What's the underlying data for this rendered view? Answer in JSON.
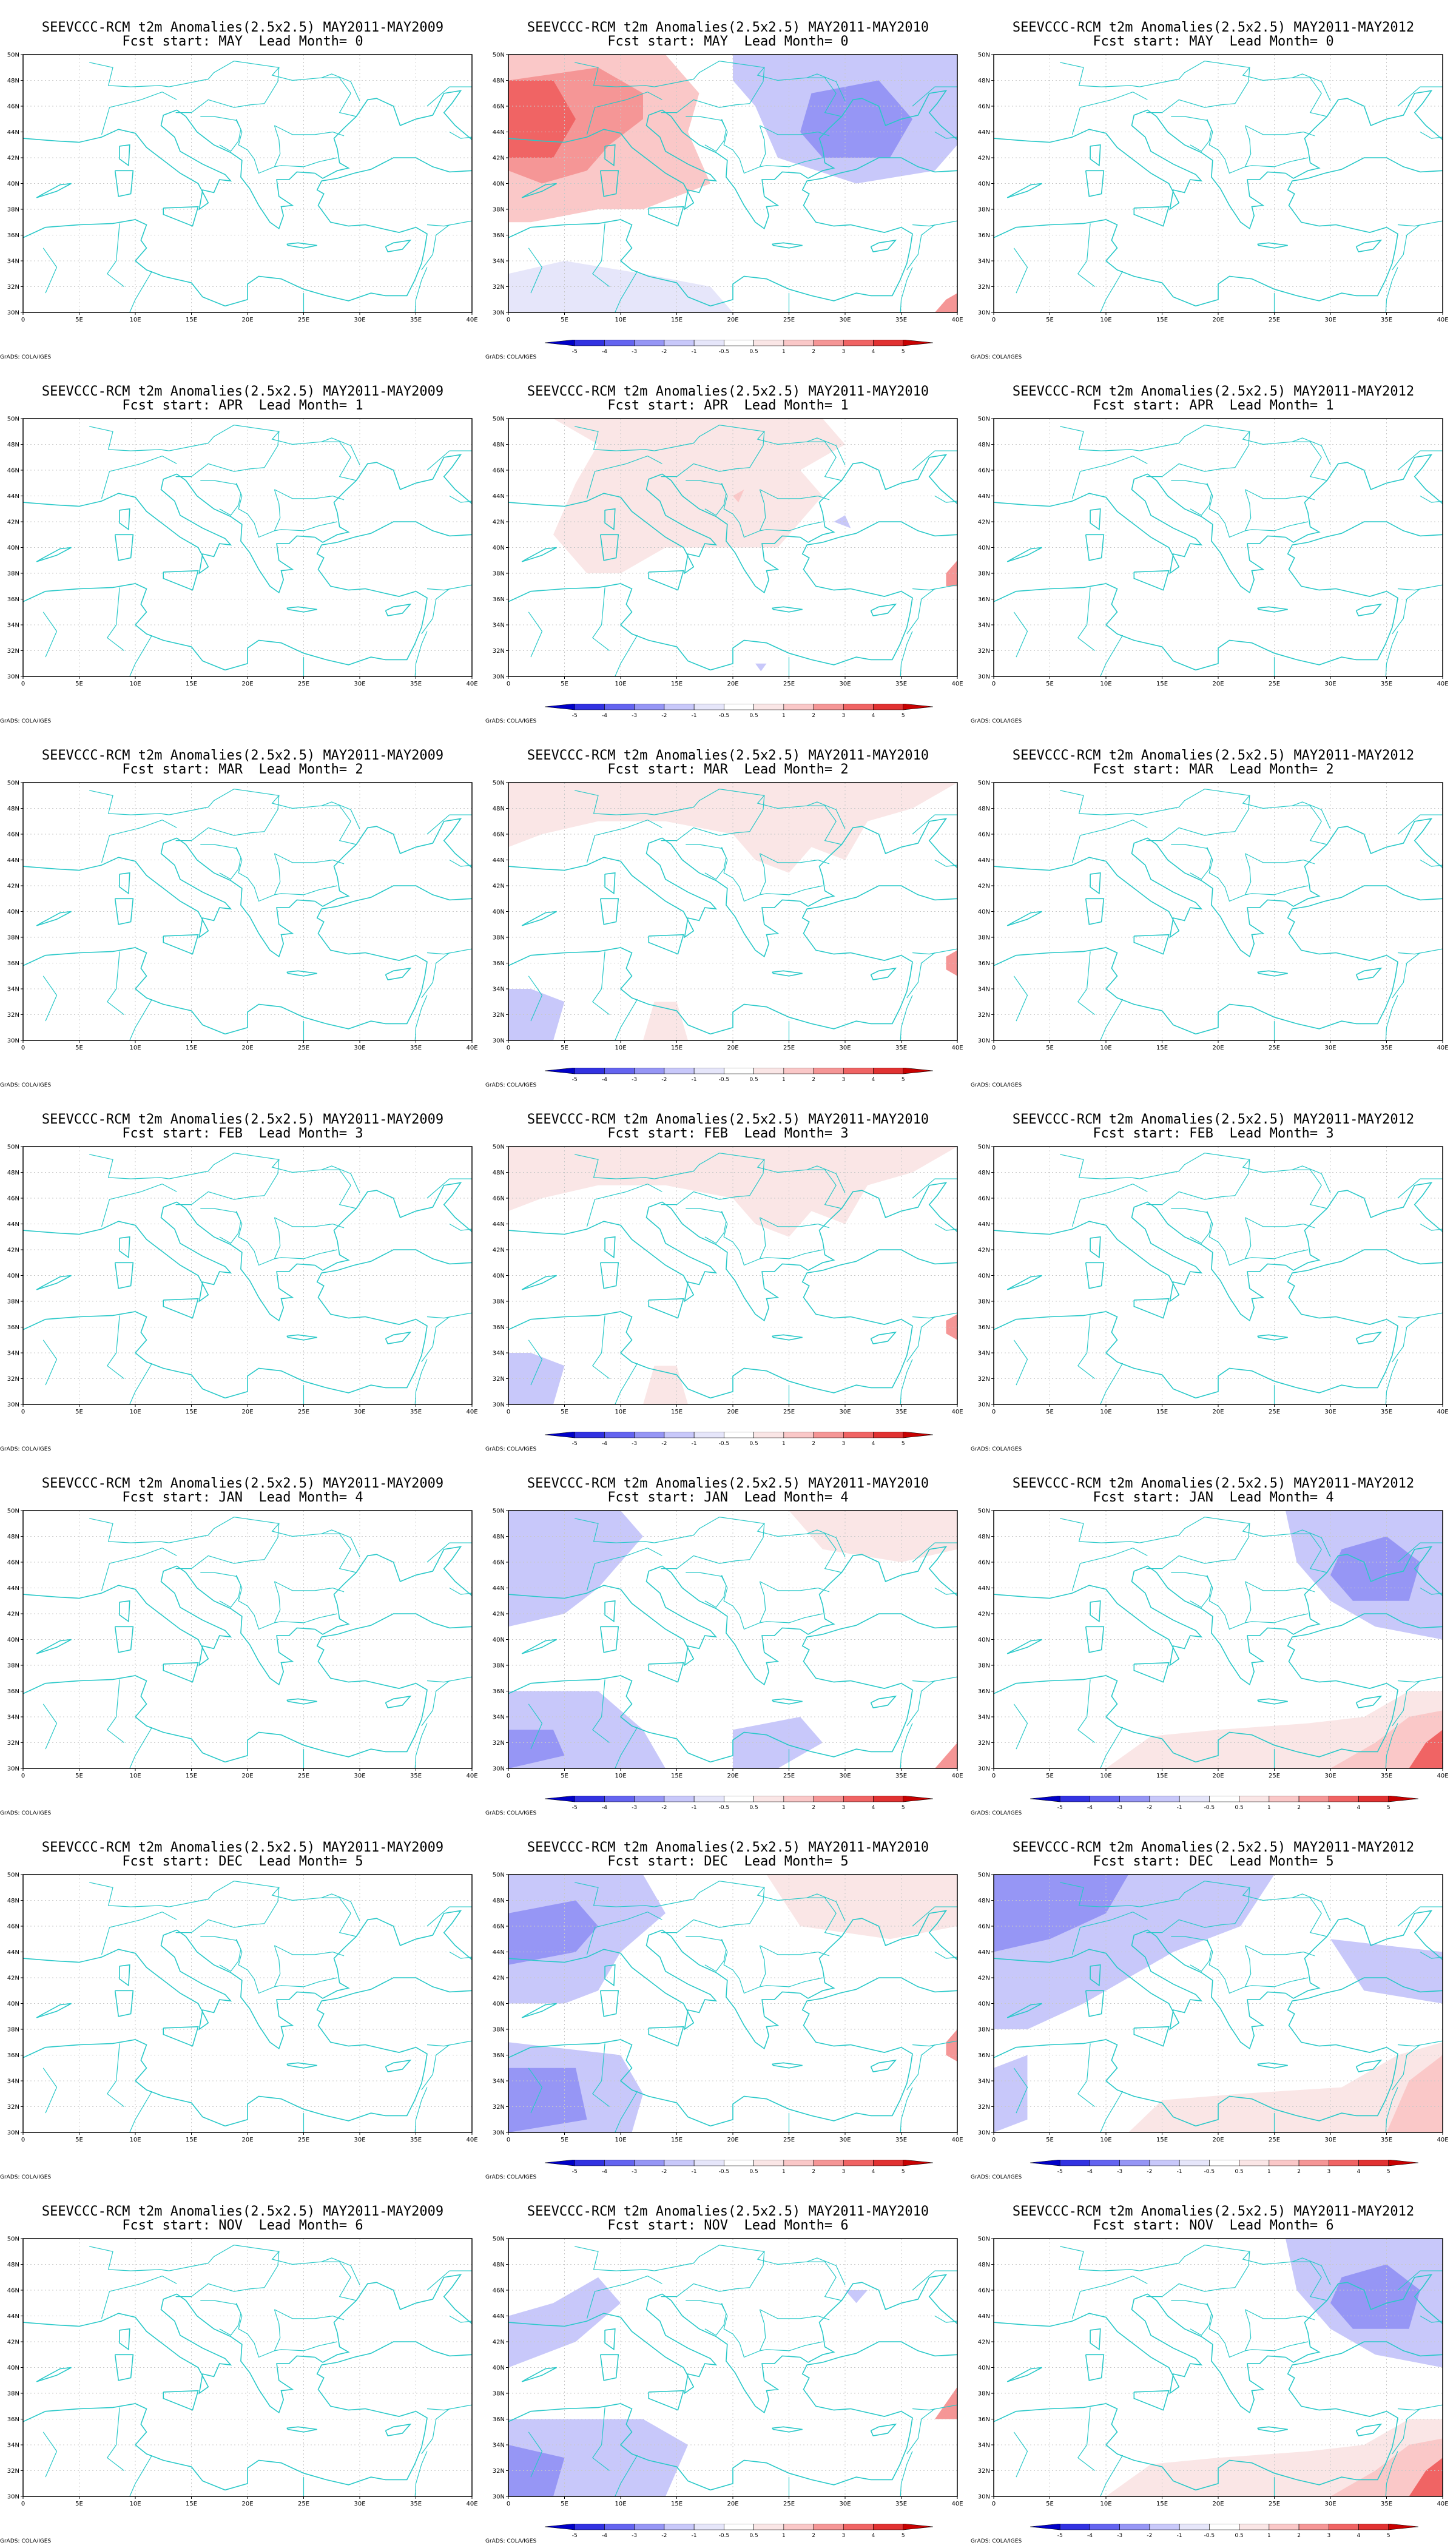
{
  "map": {
    "lat_labels": [
      "50N",
      "48N",
      "46N",
      "44N",
      "42N",
      "40N",
      "38N",
      "36N",
      "34N",
      "32N",
      "30N"
    ],
    "lon_labels": [
      "0",
      "5E",
      "10E",
      "15E",
      "20E",
      "25E",
      "30E",
      "35E",
      "40E"
    ],
    "lat_range": [
      30,
      50
    ],
    "lon_range": [
      0,
      40
    ],
    "coast_color": "#28c8c8",
    "grid_color": "#c8c8c8"
  },
  "credit": "GrADS: COLA/IGES",
  "colorbar": {
    "ticks": [
      "-5",
      "-4",
      "-3",
      "-2",
      "-1",
      "-0.5",
      "0.5",
      "1",
      "2",
      "3",
      "4",
      "5"
    ],
    "colors": [
      "#0000c8",
      "#3232e1",
      "#6464f0",
      "#9696f5",
      "#c8c8fa",
      "#e6e6fa",
      "#ffffff",
      "#fae6e6",
      "#fac8c8",
      "#f59696",
      "#f06464",
      "#e13232",
      "#c80000"
    ]
  },
  "title_prefix": "SEEVCCC-RCM t2m Anomalies(2.5x2.5)",
  "columns": [
    {
      "period": "MAY2011-MAY2009"
    },
    {
      "period": "MAY2011-MAY2010"
    },
    {
      "period": "MAY2011-MAY2012"
    }
  ],
  "panels": [
    {
      "title1": "SEEVCCC-RCM t2m Anomalies(2.5x2.5) MAY2011-MAY2009",
      "title2": "Fcst start: MAY  Lead Month= 0",
      "colorbar": false,
      "anomaly": "none"
    },
    {
      "title1": "SEEVCCC-RCM t2m Anomalies(2.5x2.5) MAY2011-MAY2010",
      "title2": "Fcst start: MAY  Lead Month= 0",
      "colorbar": true,
      "anomaly": "warm-west-cold-east"
    },
    {
      "title1": "SEEVCCC-RCM t2m Anomalies(2.5x2.5) MAY2011-MAY2012",
      "title2": "Fcst start: MAY  Lead Month= 0",
      "colorbar": false,
      "anomaly": "none"
    },
    {
      "title1": "SEEVCCC-RCM t2m Anomalies(2.5x2.5) MAY2011-MAY2009",
      "title2": "Fcst start: APR  Lead Month= 1",
      "colorbar": false,
      "anomaly": "none"
    },
    {
      "title1": "SEEVCCC-RCM t2m Anomalies(2.5x2.5) MAY2011-MAY2010",
      "title2": "Fcst start: APR  Lead Month= 1",
      "colorbar": true,
      "anomaly": "warm-north"
    },
    {
      "title1": "SEEVCCC-RCM t2m Anomalies(2.5x2.5) MAY2011-MAY2012",
      "title2": "Fcst start: APR  Lead Month= 1",
      "colorbar": false,
      "anomaly": "none"
    },
    {
      "title1": "SEEVCCC-RCM t2m Anomalies(2.5x2.5) MAY2011-MAY2009",
      "title2": "Fcst start: MAR  Lead Month= 2",
      "colorbar": false,
      "anomaly": "none"
    },
    {
      "title1": "SEEVCCC-RCM t2m Anomalies(2.5x2.5) MAY2011-MAY2010",
      "title2": "Fcst start: MAR  Lead Month= 2",
      "colorbar": true,
      "anomaly": "warm-north-light"
    },
    {
      "title1": "SEEVCCC-RCM t2m Anomalies(2.5x2.5) MAY2011-MAY2012",
      "title2": "Fcst start: MAR  Lead Month= 2",
      "colorbar": false,
      "anomaly": "none"
    },
    {
      "title1": "SEEVCCC-RCM t2m Anomalies(2.5x2.5) MAY2011-MAY2009",
      "title2": "Fcst start: FEB  Lead Month= 3",
      "colorbar": false,
      "anomaly": "none"
    },
    {
      "title1": "SEEVCCC-RCM t2m Anomalies(2.5x2.5) MAY2011-MAY2010",
      "title2": "Fcst start: FEB  Lead Month= 3",
      "colorbar": true,
      "anomaly": "warm-north-light"
    },
    {
      "title1": "SEEVCCC-RCM t2m Anomalies(2.5x2.5) MAY2011-MAY2012",
      "title2": "Fcst start: FEB  Lead Month= 3",
      "colorbar": false,
      "anomaly": "none"
    },
    {
      "title1": "SEEVCCC-RCM t2m Anomalies(2.5x2.5) MAY2011-MAY2009",
      "title2": "Fcst start: JAN  Lead Month= 4",
      "colorbar": false,
      "anomaly": "none"
    },
    {
      "title1": "SEEVCCC-RCM t2m Anomalies(2.5x2.5) MAY2011-MAY2010",
      "title2": "Fcst start: JAN  Lead Month= 4",
      "colorbar": true,
      "anomaly": "mixed"
    },
    {
      "title1": "SEEVCCC-RCM t2m Anomalies(2.5x2.5) MAY2011-MAY2012",
      "title2": "Fcst start: JAN  Lead Month= 4",
      "colorbar": true,
      "anomaly": "cold-east-warm-south"
    },
    {
      "title1": "SEEVCCC-RCM t2m Anomalies(2.5x2.5) MAY2011-MAY2009",
      "title2": "Fcst start: DEC  Lead Month= 5",
      "colorbar": false,
      "anomaly": "none"
    },
    {
      "title1": "SEEVCCC-RCM t2m Anomalies(2.5x2.5) MAY2011-MAY2010",
      "title2": "Fcst start: DEC  Lead Month= 5",
      "colorbar": true,
      "anomaly": "cold-west"
    },
    {
      "title1": "SEEVCCC-RCM t2m Anomalies(2.5x2.5) MAY2011-MAY2012",
      "title2": "Fcst start: DEC  Lead Month= 5",
      "colorbar": true,
      "anomaly": "cold-nw-warm-se"
    },
    {
      "title1": "SEEVCCC-RCM t2m Anomalies(2.5x2.5) MAY2011-MAY2009",
      "title2": "Fcst start: NOV  Lead Month= 6",
      "colorbar": false,
      "anomaly": "none"
    },
    {
      "title1": "SEEVCCC-RCM t2m Anomalies(2.5x2.5) MAY2011-MAY2010",
      "title2": "Fcst start: NOV  Lead Month= 6",
      "colorbar": true,
      "anomaly": "cold-west-light"
    },
    {
      "title1": "SEEVCCC-RCM t2m Anomalies(2.5x2.5) MAY2011-MAY2012",
      "title2": "Fcst start: NOV  Lead Month= 6",
      "colorbar": true,
      "anomaly": "cold-east-warm-south"
    }
  ]
}
